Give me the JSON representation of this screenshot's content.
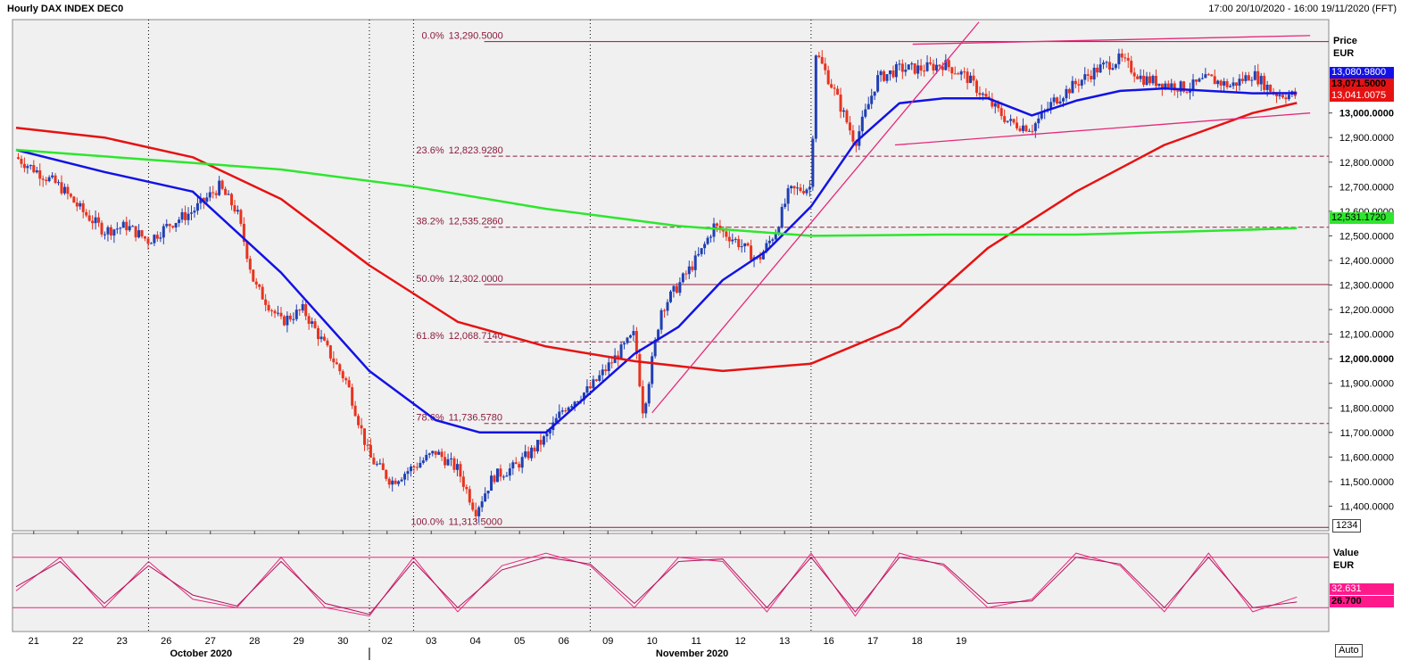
{
  "window": {
    "title": "Hourly DAX INDEX DEC0",
    "range": "17:00 20/10/2020 - 16:00 19/11/2020 (FFT)"
  },
  "price_axis": {
    "title": "Price",
    "unit": "EUR",
    "scale_box": "1234"
  },
  "osc_axis": {
    "title": "Value",
    "unit": "EUR",
    "auto": "Auto"
  },
  "colors": {
    "up": "#1f3fb3",
    "down": "#e8331f",
    "ma_blue": "#1212e6",
    "ma_red": "#e61212",
    "ma_green": "#2ee62e",
    "fib": "#8b1c3c",
    "trend": "#e6287a",
    "osc": "#e6287a"
  },
  "tags": {
    "blue_ma": "13,080.9800",
    "last": "13,071.5000",
    "red_ma": "13,041.0075",
    "green_ma": "12,531.1720",
    "osc_k": "32.631",
    "osc_d": "26.700"
  },
  "chart_data": {
    "type": "line",
    "title": "Hourly DAX INDEX DEC0",
    "currency": "EUR",
    "ylim": [
      11300,
      13380
    ],
    "yticks": [
      "11,400.0000",
      "11,500.0000",
      "11,600.0000",
      "11,700.0000",
      "11,800.0000",
      "11,900.0000",
      "12,000.0000",
      "12,100.0000",
      "12,200.0000",
      "12,300.0000",
      "12,400.0000",
      "12,500.0000",
      "12,600.0000",
      "12,700.0000",
      "12,800.0000",
      "12,900.0000",
      "13,000.0000"
    ],
    "ytick_values": [
      11400,
      11500,
      11600,
      11700,
      11800,
      11900,
      12000,
      12100,
      12200,
      12300,
      12400,
      12500,
      12600,
      12700,
      12800,
      12900,
      13000
    ],
    "xticks": [
      "21",
      "22",
      "23",
      "26",
      "27",
      "28",
      "29",
      "30",
      "02",
      "03",
      "04",
      "05",
      "06",
      "09",
      "10",
      "11",
      "12",
      "13",
      "16",
      "17",
      "18",
      "19"
    ],
    "months": [
      "October 2020",
      "November 2020"
    ],
    "fib_levels": [
      {
        "pct": "0.0%",
        "value": "13,290.5000",
        "v": 13290.5
      },
      {
        "pct": "23.6%",
        "value": "12,823.9280",
        "v": 12823.928
      },
      {
        "pct": "38.2%",
        "value": "12,535.2860",
        "v": 12535.286
      },
      {
        "pct": "50.0%",
        "value": "12,302.0000",
        "v": 12302.0
      },
      {
        "pct": "61.8%",
        "value": "12,068.7140",
        "v": 12068.714
      },
      {
        "pct": "78.6%",
        "value": "11,736.5780",
        "v": 11736.578
      },
      {
        "pct": "100.0%",
        "value": "11,313.5000",
        "v": 11313.5
      }
    ],
    "price_path": [
      [
        0,
        12820
      ],
      [
        0.5,
        12760
      ],
      [
        1,
        12700
      ],
      [
        1.5,
        12600
      ],
      [
        2,
        12520
      ],
      [
        2.5,
        12540
      ],
      [
        3,
        12480
      ],
      [
        3.5,
        12550
      ],
      [
        4,
        12600
      ],
      [
        4.6,
        12700
      ],
      [
        5,
        12600
      ],
      [
        5.4,
        12300
      ],
      [
        6,
        12150
      ],
      [
        6.5,
        12200
      ],
      [
        7,
        12050
      ],
      [
        7.5,
        11900
      ],
      [
        8,
        11600
      ],
      [
        8.5,
        11500
      ],
      [
        9,
        11560
      ],
      [
        9.5,
        11620
      ],
      [
        10,
        11550
      ],
      [
        10.4,
        11380
      ],
      [
        10.8,
        11520
      ],
      [
        11.3,
        11560
      ],
      [
        12,
        11680
      ],
      [
        12.4,
        11800
      ],
      [
        13,
        11880
      ],
      [
        13.5,
        11990
      ],
      [
        14,
        12100
      ],
      [
        14.2,
        11780
      ],
      [
        14.6,
        12200
      ],
      [
        15,
        12300
      ],
      [
        15.5,
        12430
      ],
      [
        15.8,
        12540
      ],
      [
        16.3,
        12480
      ],
      [
        16.8,
        12400
      ],
      [
        17.2,
        12520
      ],
      [
        17.5,
        12680
      ],
      [
        18,
        12700
      ],
      [
        18.1,
        13250
      ],
      [
        18.5,
        13100
      ],
      [
        19,
        12880
      ],
      [
        19.5,
        13140
      ],
      [
        20,
        13180
      ],
      [
        20.5,
        13180
      ],
      [
        21,
        13200
      ],
      [
        21.5,
        13150
      ],
      [
        22,
        13050
      ],
      [
        22.5,
        12960
      ],
      [
        23,
        12940
      ],
      [
        23.5,
        13050
      ],
      [
        24,
        13120
      ],
      [
        24.5,
        13180
      ],
      [
        25,
        13220
      ],
      [
        25.5,
        13140
      ],
      [
        26,
        13120
      ],
      [
        26.5,
        13100
      ],
      [
        27,
        13140
      ],
      [
        27.5,
        13110
      ],
      [
        28,
        13160
      ],
      [
        28.5,
        13080
      ],
      [
        29,
        13071.5
      ]
    ],
    "series": [
      {
        "values": [
          [
            0,
            12850
          ],
          [
            2,
            12760
          ],
          [
            4,
            12680
          ],
          [
            6,
            12350
          ],
          [
            8,
            11950
          ],
          [
            9.5,
            11750
          ],
          [
            10.5,
            11700
          ],
          [
            12,
            11700
          ],
          [
            13,
            11860
          ],
          [
            14,
            12020
          ],
          [
            15,
            12130
          ],
          [
            16,
            12320
          ],
          [
            17,
            12440
          ],
          [
            18,
            12620
          ],
          [
            19,
            12880
          ],
          [
            20,
            13040
          ],
          [
            21,
            13060
          ],
          [
            22,
            13060
          ],
          [
            23,
            12990
          ],
          [
            24,
            13050
          ],
          [
            25,
            13090
          ],
          [
            26,
            13100
          ],
          [
            27,
            13090
          ],
          [
            28,
            13080
          ],
          [
            29,
            13080.98
          ]
        ]
      },
      {
        "values": [
          [
            0,
            12940
          ],
          [
            2,
            12900
          ],
          [
            4,
            12820
          ],
          [
            6,
            12650
          ],
          [
            8,
            12380
          ],
          [
            10,
            12150
          ],
          [
            12,
            12050
          ],
          [
            14,
            11990
          ],
          [
            16,
            11950
          ],
          [
            18,
            11980
          ],
          [
            20,
            12130
          ],
          [
            22,
            12450
          ],
          [
            24,
            12680
          ],
          [
            26,
            12870
          ],
          [
            28,
            13000
          ],
          [
            29,
            13041.0075
          ]
        ]
      },
      {
        "values": [
          [
            0,
            12850
          ],
          [
            3,
            12810
          ],
          [
            6,
            12770
          ],
          [
            9,
            12700
          ],
          [
            12,
            12610
          ],
          [
            15,
            12540
          ],
          [
            18,
            12500
          ],
          [
            21,
            12505
          ],
          [
            24,
            12505
          ],
          [
            27,
            12520
          ],
          [
            29,
            12531.172
          ]
        ]
      }
    ],
    "trendlines": [
      {
        "from": [
          14.4,
          11780
        ],
        "to": [
          21.8,
          13370
        ]
      },
      {
        "from": [
          19.9,
          12870
        ],
        "to": [
          29.3,
          13000
        ]
      },
      {
        "from": [
          20.3,
          13280
        ],
        "to": [
          29.3,
          13315
        ]
      }
    ],
    "oscillator": {
      "levels": [
        80,
        20
      ],
      "ylim": [
        0,
        100
      ],
      "k": [
        [
          0,
          40
        ],
        [
          1,
          80
        ],
        [
          2,
          20
        ],
        [
          3,
          75
        ],
        [
          4,
          30
        ],
        [
          5,
          20
        ],
        [
          6,
          80
        ],
        [
          7,
          20
        ],
        [
          8,
          10
        ],
        [
          9,
          80
        ],
        [
          10,
          15
        ],
        [
          11,
          70
        ],
        [
          12,
          85
        ],
        [
          13,
          70
        ],
        [
          14,
          20
        ],
        [
          15,
          80
        ],
        [
          16,
          75
        ],
        [
          17,
          15
        ],
        [
          18,
          85
        ],
        [
          19,
          10
        ],
        [
          20,
          85
        ],
        [
          21,
          70
        ],
        [
          22,
          20
        ],
        [
          23,
          30
        ],
        [
          24,
          85
        ],
        [
          25,
          70
        ],
        [
          26,
          15
        ],
        [
          27,
          85
        ],
        [
          28,
          15
        ],
        [
          29,
          32.631
        ]
      ],
      "d": [
        [
          0,
          45
        ],
        [
          1,
          75
        ],
        [
          2,
          25
        ],
        [
          3,
          70
        ],
        [
          4,
          35
        ],
        [
          5,
          22
        ],
        [
          6,
          75
        ],
        [
          7,
          25
        ],
        [
          8,
          12
        ],
        [
          9,
          75
        ],
        [
          10,
          20
        ],
        [
          11,
          65
        ],
        [
          12,
          80
        ],
        [
          13,
          72
        ],
        [
          14,
          25
        ],
        [
          15,
          75
        ],
        [
          16,
          78
        ],
        [
          17,
          20
        ],
        [
          18,
          80
        ],
        [
          19,
          15
        ],
        [
          20,
          80
        ],
        [
          21,
          72
        ],
        [
          22,
          25
        ],
        [
          23,
          28
        ],
        [
          24,
          80
        ],
        [
          25,
          72
        ],
        [
          26,
          20
        ],
        [
          27,
          80
        ],
        [
          28,
          20
        ],
        [
          29,
          26.7
        ]
      ]
    }
  }
}
